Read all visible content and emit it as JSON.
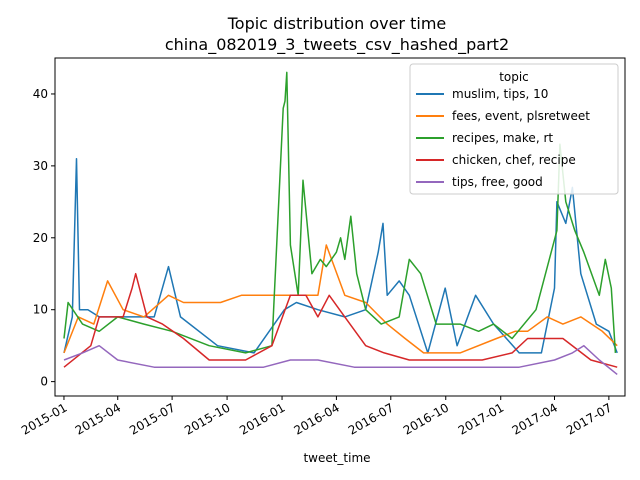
{
  "chart_data": {
    "type": "line",
    "title_line1": "Topic distribution over time",
    "title_line2": "china_082019_3_tweets_csv_hashed_part2",
    "xlabel": "tweet_time",
    "ylabel": "",
    "x_ticks": [
      "2015-01",
      "2015-04",
      "2015-07",
      "2015-10",
      "2016-01",
      "2016-04",
      "2016-07",
      "2016-10",
      "2017-01",
      "2017-04",
      "2017-07"
    ],
    "y_ticks": [
      "0",
      "10",
      "20",
      "30",
      "40"
    ],
    "xlim": [
      "2014-12-17",
      "2017-07-28"
    ],
    "ylim": [
      -2,
      45
    ],
    "legend": {
      "title": "topic",
      "placement": "top-right"
    },
    "series": [
      {
        "name": "muslim, tips, 10",
        "color": "#1f77b4",
        "points": [
          [
            "2015-01-01",
            4
          ],
          [
            "2015-01-15",
            9
          ],
          [
            "2015-01-22",
            31
          ],
          [
            "2015-01-27",
            10
          ],
          [
            "2015-02-10",
            10
          ],
          [
            "2015-03-01",
            9
          ],
          [
            "2015-04-15",
            9
          ],
          [
            "2015-06-01",
            9
          ],
          [
            "2015-06-25",
            16
          ],
          [
            "2015-07-15",
            9
          ],
          [
            "2015-09-15",
            5
          ],
          [
            "2015-11-15",
            4
          ],
          [
            "2016-01-05",
            10
          ],
          [
            "2016-01-25",
            11
          ],
          [
            "2016-03-01",
            10
          ],
          [
            "2016-04-15",
            9
          ],
          [
            "2016-05-20",
            10
          ],
          [
            "2016-06-10",
            18
          ],
          [
            "2016-06-18",
            22
          ],
          [
            "2016-06-25",
            12
          ],
          [
            "2016-07-15",
            14
          ],
          [
            "2016-08-01",
            12
          ],
          [
            "2016-09-01",
            4
          ],
          [
            "2016-09-30",
            13
          ],
          [
            "2016-10-20",
            5
          ],
          [
            "2016-11-20",
            12
          ],
          [
            "2016-12-20",
            8
          ],
          [
            "2017-02-01",
            4
          ],
          [
            "2017-03-10",
            4
          ],
          [
            "2017-04-01",
            13
          ],
          [
            "2017-04-05",
            25
          ],
          [
            "2017-04-20",
            22
          ],
          [
            "2017-05-01",
            27
          ],
          [
            "2017-05-15",
            15
          ],
          [
            "2017-06-10",
            8
          ],
          [
            "2017-07-01",
            7
          ],
          [
            "2017-07-15",
            4
          ]
        ]
      },
      {
        "name": "fees, event, plsretweet",
        "color": "#ff7f0e",
        "points": [
          [
            "2015-01-01",
            4
          ],
          [
            "2015-01-25",
            9
          ],
          [
            "2015-02-20",
            8
          ],
          [
            "2015-03-15",
            14
          ],
          [
            "2015-04-10",
            10
          ],
          [
            "2015-05-15",
            9
          ],
          [
            "2015-06-25",
            12
          ],
          [
            "2015-07-20",
            11
          ],
          [
            "2015-08-20",
            11
          ],
          [
            "2015-09-20",
            11
          ],
          [
            "2015-10-25",
            12
          ],
          [
            "2015-11-25",
            12
          ],
          [
            "2015-12-28",
            12
          ],
          [
            "2016-02-15",
            12
          ],
          [
            "2016-03-01",
            12
          ],
          [
            "2016-03-15",
            19
          ],
          [
            "2016-04-15",
            12
          ],
          [
            "2016-05-20",
            11
          ],
          [
            "2016-06-25",
            8
          ],
          [
            "2016-07-25",
            6
          ],
          [
            "2016-08-25",
            4
          ],
          [
            "2016-10-25",
            4
          ],
          [
            "2016-12-25",
            6
          ],
          [
            "2017-01-25",
            7
          ],
          [
            "2017-02-15",
            7
          ],
          [
            "2017-03-20",
            9
          ],
          [
            "2017-04-15",
            8
          ],
          [
            "2017-05-15",
            9
          ],
          [
            "2017-06-20",
            7
          ],
          [
            "2017-07-15",
            5
          ]
        ]
      },
      {
        "name": "recipes, make, rt",
        "color": "#2ca02c",
        "points": [
          [
            "2015-01-01",
            6
          ],
          [
            "2015-01-08",
            11
          ],
          [
            "2015-02-01",
            8
          ],
          [
            "2015-03-01",
            7
          ],
          [
            "2015-04-01",
            9
          ],
          [
            "2015-05-15",
            8
          ],
          [
            "2015-07-01",
            7
          ],
          [
            "2015-09-01",
            5
          ],
          [
            "2015-11-01",
            4
          ],
          [
            "2015-12-15",
            5
          ],
          [
            "2016-01-03",
            38
          ],
          [
            "2016-01-06",
            39
          ],
          [
            "2016-01-09",
            43
          ],
          [
            "2016-01-15",
            19
          ],
          [
            "2016-01-28",
            12
          ],
          [
            "2016-02-05",
            28
          ],
          [
            "2016-02-20",
            15
          ],
          [
            "2016-03-05",
            17
          ],
          [
            "2016-03-15",
            16
          ],
          [
            "2016-04-01",
            18
          ],
          [
            "2016-04-08",
            20
          ],
          [
            "2016-04-15",
            17
          ],
          [
            "2016-04-25",
            23
          ],
          [
            "2016-05-05",
            15
          ],
          [
            "2016-05-20",
            10
          ],
          [
            "2016-06-15",
            8
          ],
          [
            "2016-07-15",
            9
          ],
          [
            "2016-08-01",
            17
          ],
          [
            "2016-08-20",
            15
          ],
          [
            "2016-09-15",
            8
          ],
          [
            "2016-10-25",
            8
          ],
          [
            "2016-11-25",
            7
          ],
          [
            "2016-12-20",
            8
          ],
          [
            "2017-01-20",
            6
          ],
          [
            "2017-03-01",
            10
          ],
          [
            "2017-04-05",
            21
          ],
          [
            "2017-04-10",
            33
          ],
          [
            "2017-04-20",
            25
          ],
          [
            "2017-05-05",
            21
          ],
          [
            "2017-05-20",
            18
          ],
          [
            "2017-06-15",
            12
          ],
          [
            "2017-06-25",
            17
          ],
          [
            "2017-07-05",
            13
          ],
          [
            "2017-07-12",
            4
          ]
        ]
      },
      {
        "name": "chicken, chef, recipe",
        "color": "#d62728",
        "points": [
          [
            "2015-01-01",
            2
          ],
          [
            "2015-02-15",
            5
          ],
          [
            "2015-03-01",
            9
          ],
          [
            "2015-04-10",
            9
          ],
          [
            "2015-04-25",
            13
          ],
          [
            "2015-05-01",
            15
          ],
          [
            "2015-05-20",
            9
          ],
          [
            "2015-06-15",
            8
          ],
          [
            "2015-07-20",
            6
          ],
          [
            "2015-09-01",
            3
          ],
          [
            "2015-11-01",
            3
          ],
          [
            "2015-12-15",
            5
          ],
          [
            "2016-01-15",
            12
          ],
          [
            "2016-02-10",
            12
          ],
          [
            "2016-03-01",
            9
          ],
          [
            "2016-03-20",
            12
          ],
          [
            "2016-04-15",
            9
          ],
          [
            "2016-05-20",
            5
          ],
          [
            "2016-06-20",
            4
          ],
          [
            "2016-08-01",
            3
          ],
          [
            "2016-10-01",
            3
          ],
          [
            "2016-12-01",
            3
          ],
          [
            "2017-01-20",
            4
          ],
          [
            "2017-02-15",
            6
          ],
          [
            "2017-04-15",
            6
          ],
          [
            "2017-06-01",
            3
          ],
          [
            "2017-07-15",
            2
          ]
        ]
      },
      {
        "name": "tips, free, good",
        "color": "#9467bd",
        "points": [
          [
            "2015-01-01",
            3
          ],
          [
            "2015-02-01",
            4
          ],
          [
            "2015-03-01",
            5
          ],
          [
            "2015-04-01",
            3
          ],
          [
            "2015-06-01",
            2
          ],
          [
            "2015-09-01",
            2
          ],
          [
            "2015-12-01",
            2
          ],
          [
            "2016-01-15",
            3
          ],
          [
            "2016-03-01",
            3
          ],
          [
            "2016-05-01",
            2
          ],
          [
            "2016-08-01",
            2
          ],
          [
            "2016-11-01",
            2
          ],
          [
            "2017-02-01",
            2
          ],
          [
            "2017-04-01",
            3
          ],
          [
            "2017-05-01",
            4
          ],
          [
            "2017-05-20",
            5
          ],
          [
            "2017-06-15",
            3
          ],
          [
            "2017-07-15",
            1
          ]
        ]
      }
    ]
  }
}
